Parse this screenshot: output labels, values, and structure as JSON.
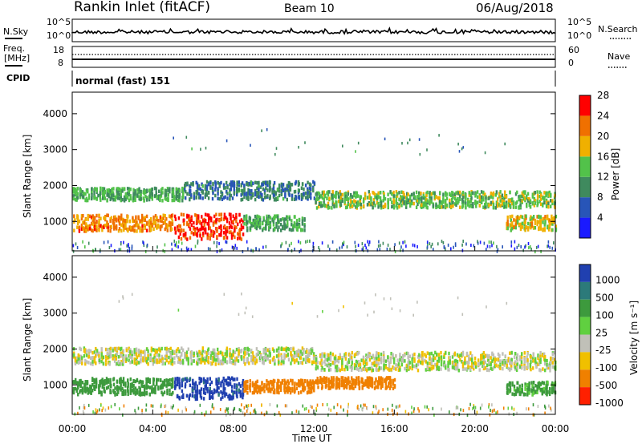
{
  "header": {
    "station": "Rankin Inlet (fitACF)",
    "beam": "Beam 10",
    "date": "06/Aug/2018"
  },
  "noise_panel": {
    "left_label": "N.Sky",
    "right_label": "N.Search",
    "left_ticks": [
      "10^5",
      "10^0"
    ],
    "right_ticks": [
      "10^5",
      "10^0"
    ]
  },
  "freq_panel": {
    "left_label_1": "Freq.",
    "left_label_2": "[MHz]",
    "right_label": "Nave",
    "left_ticks": [
      "18",
      "8"
    ],
    "right_ticks": [
      "60",
      "0"
    ]
  },
  "cpid": {
    "label": "CPID",
    "value": "normal (fast) 151"
  },
  "power_panel": {
    "ylabel": "Slant Range [km]",
    "yticks": [
      "1000",
      "2000",
      "3000",
      "4000"
    ],
    "colorbar_label": "Power [dB]",
    "colorbar_ticks": [
      "4",
      "8",
      "12",
      "16",
      "20",
      "24",
      "28"
    ],
    "colors": [
      "#1a1aff",
      "#2855b8",
      "#3f8a5e",
      "#52c24a",
      "#f0b000",
      "#f07000",
      "#ff0000"
    ]
  },
  "velocity_panel": {
    "ylabel": "Slant Range [km]",
    "yticks": [
      "1000",
      "2000",
      "3000",
      "4000"
    ],
    "colorbar_label": "Velocity [m s⁻¹]",
    "colorbar_ticks": [
      "1000",
      "500",
      "100",
      "25",
      "-25",
      "-100",
      "-500",
      "-1000"
    ],
    "colors": [
      "#2040b0",
      "#2c7a7a",
      "#3d9a3d",
      "#60d040",
      "#c0c0b8",
      "#f0c000",
      "#f08000",
      "#ff2000"
    ]
  },
  "xaxis": {
    "label": "Time UT",
    "ticks": [
      "00:00",
      "04:00",
      "08:00",
      "12:00",
      "16:00",
      "20:00",
      "00:00"
    ]
  },
  "chart_data": [
    {
      "type": "heatmap",
      "title": "Power",
      "x_range_hours": [
        0,
        24
      ],
      "y_range_km": [
        180,
        4600
      ],
      "colorbar": {
        "label": "Power [dB]",
        "ticks": [
          4,
          8,
          12,
          16,
          20,
          24,
          28
        ],
        "range": [
          0,
          32
        ]
      },
      "ylabel": "Slant Range [km]",
      "xlabel": "Time UT",
      "bands": [
        {
          "t_start": 0.0,
          "t_end": 5.5,
          "range_center_km": 1800,
          "range_width_km": 350,
          "power_db": 14
        },
        {
          "t_start": 5.5,
          "t_end": 12.0,
          "range_center_km": 1900,
          "range_width_km": 500,
          "power_db": 10
        },
        {
          "t_start": 12.0,
          "t_end": 24.0,
          "range_center_km": 1650,
          "range_width_km": 450,
          "power_db": 16
        },
        {
          "t_start": 0.0,
          "t_end": 5.0,
          "range_center_km": 1000,
          "range_width_km": 450,
          "power_db": 24
        },
        {
          "t_start": 5.0,
          "t_end": 8.5,
          "range_center_km": 900,
          "range_width_km": 700,
          "power_db": 28
        },
        {
          "t_start": 8.5,
          "t_end": 11.5,
          "range_center_km": 1000,
          "range_width_km": 400,
          "power_db": 14
        },
        {
          "t_start": 21.5,
          "t_end": 24.0,
          "range_center_km": 1000,
          "range_width_km": 400,
          "power_db": 20
        }
      ]
    },
    {
      "type": "heatmap",
      "title": "Velocity",
      "x_range_hours": [
        0,
        24
      ],
      "y_range_km": [
        180,
        4600
      ],
      "colorbar": {
        "label": "Velocity [m s⁻¹]",
        "ticks": [
          1000,
          500,
          100,
          25,
          -25,
          -100,
          -500,
          -1000
        ]
      },
      "ylabel": "Slant Range [km]",
      "xlabel": "Time UT",
      "bands": [
        {
          "t_start": 0.0,
          "t_end": 12.0,
          "range_center_km": 1850,
          "range_width_km": 450,
          "velocity": 0
        },
        {
          "t_start": 12.0,
          "t_end": 24.0,
          "range_center_km": 1700,
          "range_width_km": 500,
          "velocity": 0
        },
        {
          "t_start": 0.0,
          "t_end": 5.0,
          "range_center_km": 1000,
          "range_width_km": 450,
          "velocity": 150
        },
        {
          "t_start": 5.0,
          "t_end": 8.5,
          "range_center_km": 950,
          "range_width_km": 600,
          "velocity": 800
        },
        {
          "t_start": 8.5,
          "t_end": 12.0,
          "range_center_km": 1000,
          "range_width_km": 350,
          "velocity": -150
        },
        {
          "t_start": 12.0,
          "t_end": 16.0,
          "range_center_km": 1100,
          "range_width_km": 300,
          "velocity": -200
        },
        {
          "t_start": 21.5,
          "t_end": 24.0,
          "range_center_km": 950,
          "range_width_km": 350,
          "velocity": 100
        }
      ]
    }
  ]
}
